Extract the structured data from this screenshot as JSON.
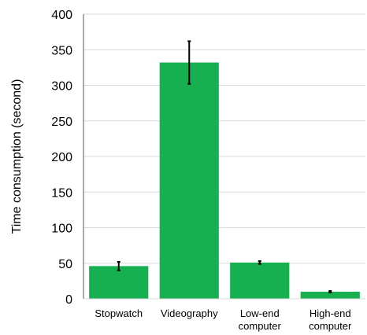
{
  "chart_data": {
    "type": "bar",
    "title": "",
    "xlabel": "",
    "ylabel": "Time consumption (second)",
    "ylim": [
      0,
      400
    ],
    "yticks": [
      0,
      50,
      100,
      150,
      200,
      250,
      300,
      350,
      400
    ],
    "grid": true,
    "categories": [
      [
        "Stopwatch"
      ],
      [
        "Videography"
      ],
      [
        "Low-end",
        "computer"
      ],
      [
        "High-end",
        "computer"
      ]
    ],
    "values": [
      46,
      332,
      51,
      10
    ],
    "errors": [
      6,
      30,
      2,
      1
    ],
    "colors": {
      "bar": "#16b050",
      "error_bar": "#000000",
      "grid": "#d9d9d9",
      "axis": "#595959"
    }
  }
}
